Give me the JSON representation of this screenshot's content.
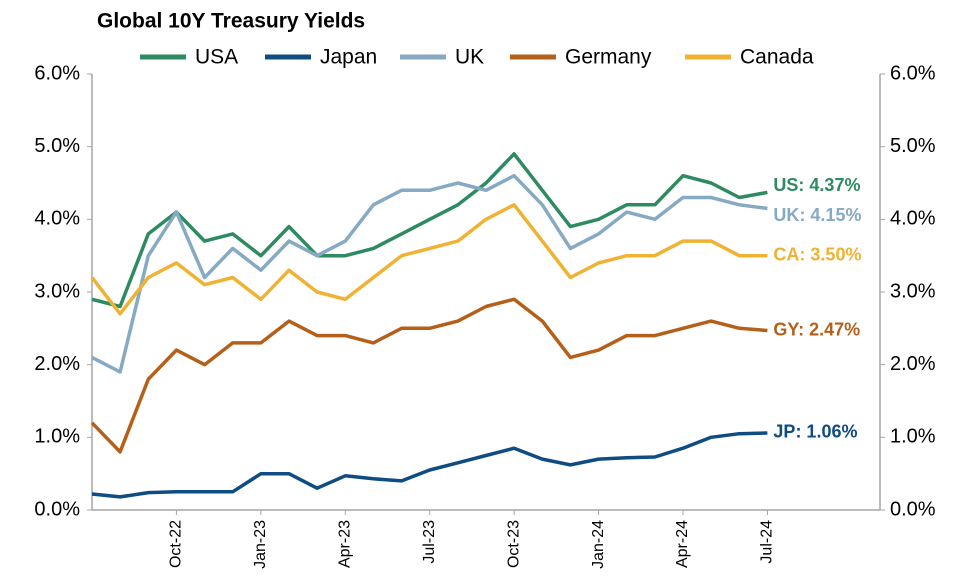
{
  "chart_data": {
    "type": "line",
    "title": "Global 10Y Treasury Yields",
    "x": [
      "2022-07",
      "2022-08",
      "2022-09",
      "2022-10",
      "2022-11",
      "2022-12",
      "2023-01",
      "2023-02",
      "2023-03",
      "2023-04",
      "2023-05",
      "2023-06",
      "2023-07",
      "2023-08",
      "2023-09",
      "2023-10",
      "2023-11",
      "2023-12",
      "2024-01",
      "2024-02",
      "2024-03",
      "2024-04",
      "2024-05",
      "2024-06",
      "2024-07"
    ],
    "xlim": [
      "2022-07",
      "2024-11"
    ],
    "xticks": [
      {
        "value": "2022-10",
        "label": "Oct-22"
      },
      {
        "value": "2023-01",
        "label": "Jan-23"
      },
      {
        "value": "2023-04",
        "label": "Apr-23"
      },
      {
        "value": "2023-07",
        "label": "Jul-23"
      },
      {
        "value": "2023-10",
        "label": "Oct-23"
      },
      {
        "value": "2024-01",
        "label": "Jan-24"
      },
      {
        "value": "2024-04",
        "label": "Apr-24"
      },
      {
        "value": "2024-07",
        "label": "Jul-24"
      }
    ],
    "ylim": [
      0,
      6
    ],
    "yticks": [
      {
        "value": 0,
        "label": "0.0%"
      },
      {
        "value": 1,
        "label": "1.0%"
      },
      {
        "value": 2,
        "label": "2.0%"
      },
      {
        "value": 3,
        "label": "3.0%"
      },
      {
        "value": 4,
        "label": "4.0%"
      },
      {
        "value": 5,
        "label": "5.0%"
      },
      {
        "value": 6,
        "label": "6.0%"
      }
    ],
    "y2lim": [
      0,
      6
    ],
    "y2ticks": [
      {
        "value": 0,
        "label": "0.0%"
      },
      {
        "value": 1,
        "label": "1.0%"
      },
      {
        "value": 2,
        "label": "2.0%"
      },
      {
        "value": 3,
        "label": "3.0%"
      },
      {
        "value": 4,
        "label": "4.0%"
      },
      {
        "value": 5,
        "label": "5.0%"
      },
      {
        "value": 6,
        "label": "6.0%"
      }
    ],
    "series": [
      {
        "name": "USA",
        "color": "#2e8b61",
        "end_label": "US: 4.37%",
        "values": [
          2.9,
          2.8,
          3.8,
          4.1,
          3.7,
          3.8,
          3.5,
          3.9,
          3.5,
          3.5,
          3.6,
          3.8,
          4.0,
          4.2,
          4.5,
          4.9,
          4.4,
          3.9,
          4.0,
          4.2,
          4.2,
          4.6,
          4.5,
          4.3,
          4.37
        ]
      },
      {
        "name": "Japan",
        "color": "#0f4c81",
        "end_label": "JP: 1.06%",
        "values": [
          0.22,
          0.18,
          0.24,
          0.25,
          0.25,
          0.25,
          0.5,
          0.5,
          0.3,
          0.47,
          0.43,
          0.4,
          0.55,
          0.65,
          0.75,
          0.85,
          0.7,
          0.62,
          0.7,
          0.72,
          0.73,
          0.85,
          1.0,
          1.05,
          1.06
        ]
      },
      {
        "name": "UK",
        "color": "#86a9c4",
        "end_label": "UK: 4.15%",
        "values": [
          2.1,
          1.9,
          3.5,
          4.1,
          3.2,
          3.6,
          3.3,
          3.7,
          3.5,
          3.7,
          4.2,
          4.4,
          4.4,
          4.5,
          4.4,
          4.6,
          4.2,
          3.6,
          3.8,
          4.1,
          4.0,
          4.3,
          4.3,
          4.2,
          4.15
        ]
      },
      {
        "name": "Germany",
        "color": "#b4601a",
        "end_label": "GY: 2.47%",
        "values": [
          1.2,
          0.8,
          1.8,
          2.2,
          2.0,
          2.3,
          2.3,
          2.6,
          2.4,
          2.4,
          2.3,
          2.5,
          2.5,
          2.6,
          2.8,
          2.9,
          2.6,
          2.1,
          2.2,
          2.4,
          2.4,
          2.5,
          2.6,
          2.5,
          2.47
        ]
      },
      {
        "name": "Canada",
        "color": "#f0b232",
        "end_label": "CA: 3.50%",
        "values": [
          3.2,
          2.7,
          3.2,
          3.4,
          3.1,
          3.2,
          2.9,
          3.3,
          3.0,
          2.9,
          3.2,
          3.5,
          3.6,
          3.7,
          4.0,
          4.2,
          3.7,
          3.2,
          3.4,
          3.5,
          3.5,
          3.7,
          3.7,
          3.5,
          3.5
        ]
      }
    ]
  }
}
